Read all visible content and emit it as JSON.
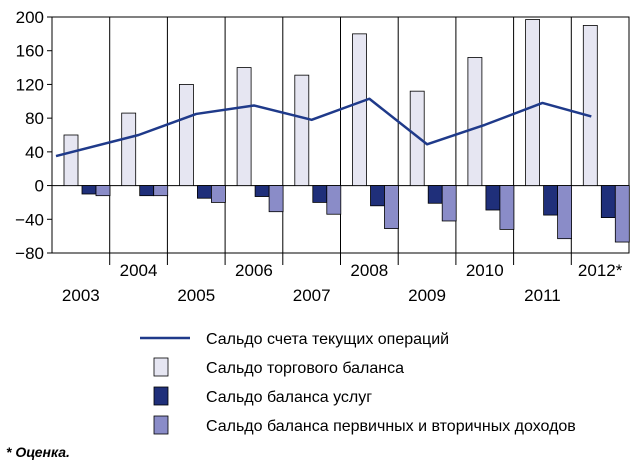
{
  "chart_data": {
    "type": "bar",
    "categories": [
      "2003",
      "2004",
      "2005",
      "2006",
      "2007",
      "2008",
      "2009",
      "2010",
      "2011",
      "2012*"
    ],
    "ylim": [
      -80,
      200
    ],
    "yticks": [
      -80,
      -40,
      0,
      40,
      80,
      120,
      160,
      200
    ],
    "grid": "vertical-separators",
    "legend_position": "bottom",
    "series": [
      {
        "name": "Сальдо торгового баланса",
        "kind": "bar",
        "color": "#e6e6f2",
        "values": [
          60,
          86,
          120,
          140,
          131,
          180,
          112,
          152,
          197,
          190
        ]
      },
      {
        "name": "Сальдо баланса услуг",
        "kind": "bar",
        "color": "#1f2f7a",
        "values": [
          -10,
          -12,
          -15,
          -13,
          -20,
          -24,
          -21,
          -29,
          -35,
          -38
        ]
      },
      {
        "name": "Сальдо баланса первичных и вторичных доходов",
        "kind": "bar",
        "color": "#8a8cc8",
        "values": [
          -12,
          -12,
          -20,
          -31,
          -34,
          -51,
          -42,
          -52,
          -63,
          -67
        ]
      },
      {
        "name": "Сальдо счета текущих операций",
        "kind": "line",
        "color": "#1f3a8a",
        "values": [
          35,
          60,
          85,
          95,
          78,
          103,
          49,
          72,
          98,
          82
        ]
      }
    ],
    "legend_order": [
      3,
      0,
      1,
      2
    ]
  },
  "footnote": "* Оценка."
}
